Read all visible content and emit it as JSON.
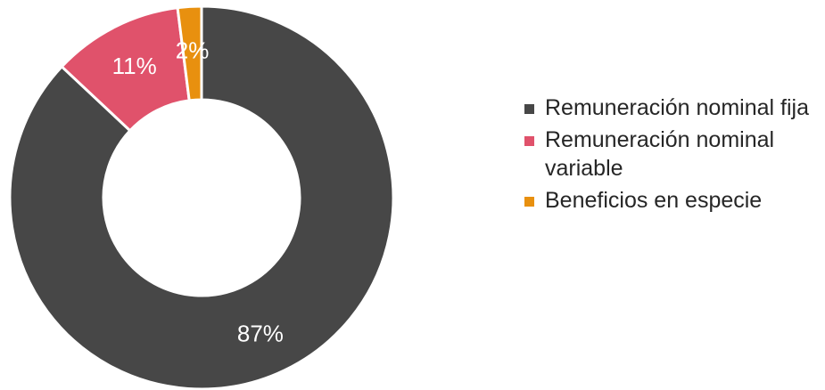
{
  "chart_data": {
    "type": "pie",
    "variant": "donut",
    "title": "",
    "categories": [
      "Remuneración nominal fija",
      "Remuneración nominal variable",
      "Beneficios en especie"
    ],
    "values": [
      87,
      11,
      2
    ],
    "data_labels": [
      "87%",
      "11%",
      "2%"
    ],
    "colors": [
      "#474747",
      "#e0526b",
      "#e8900f"
    ],
    "legend": {
      "placement": "right",
      "items": [
        {
          "label": "Remuneración nominal fija",
          "color": "#474747"
        },
        {
          "label": "Remuneración nominal variable",
          "color": "#e0526b"
        },
        {
          "label": "Beneficios en especie",
          "color": "#e8900f"
        }
      ]
    }
  }
}
